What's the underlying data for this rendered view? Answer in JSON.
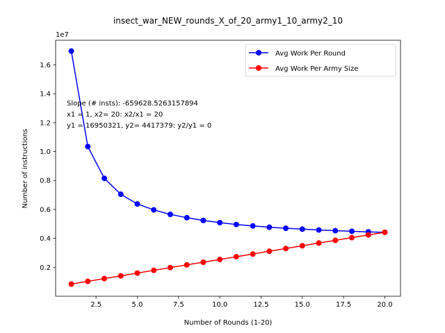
{
  "chart_data": {
    "type": "line",
    "title": "insect_war_NEW_rounds_X_of_20_army1_10_army2_10",
    "xlabel": "Number of Rounds (1-20)",
    "ylabel": "Number of instructions",
    "y_multiplier_label": "1e7",
    "xlim": [
      0.05,
      20.95
    ],
    "ylim": [
      0.0,
      1.77
    ],
    "xticks": [
      2.5,
      5.0,
      7.5,
      10.0,
      12.5,
      15.0,
      17.5,
      20.0
    ],
    "xtick_labels": [
      "2.5",
      "5.0",
      "7.5",
      "10.0",
      "12.5",
      "15.0",
      "17.5",
      "20.0"
    ],
    "yticks": [
      0.2,
      0.4,
      0.6,
      0.8,
      1.0,
      1.2,
      1.4,
      1.6
    ],
    "ytick_labels": [
      "0.2",
      "0.4",
      "0.6",
      "0.8",
      "1.0",
      "1.2",
      "1.4",
      "1.6"
    ],
    "grid": false,
    "legend_position": "upper-right",
    "annotations": [
      "Slope (# insts): -659628.5263157894",
      "x1 = 1, x2= 20: x2/x1 = 20",
      "y1 = 16950321, y2= 4417379: y2/y1 = 0"
    ],
    "x": [
      1,
      2,
      3,
      4,
      5,
      6,
      7,
      8,
      9,
      10,
      11,
      12,
      13,
      14,
      15,
      16,
      17,
      18,
      19,
      20
    ],
    "series": [
      {
        "name": "Avg Work Per Round",
        "color": "#0000ff",
        "values": [
          1.695,
          1.035,
          0.815,
          0.705,
          0.638,
          0.597,
          0.566,
          0.543,
          0.524,
          0.509,
          0.496,
          0.486,
          0.477,
          0.47,
          0.464,
          0.458,
          0.453,
          0.449,
          0.445,
          0.442
        ]
      },
      {
        "name": "Avg Work Per Army Size",
        "color": "#ff0000",
        "values": [
          0.084,
          0.103,
          0.122,
          0.141,
          0.16,
          0.179,
          0.198,
          0.217,
          0.235,
          0.254,
          0.273,
          0.292,
          0.311,
          0.33,
          0.349,
          0.368,
          0.386,
          0.405,
          0.424,
          0.442
        ]
      }
    ]
  }
}
